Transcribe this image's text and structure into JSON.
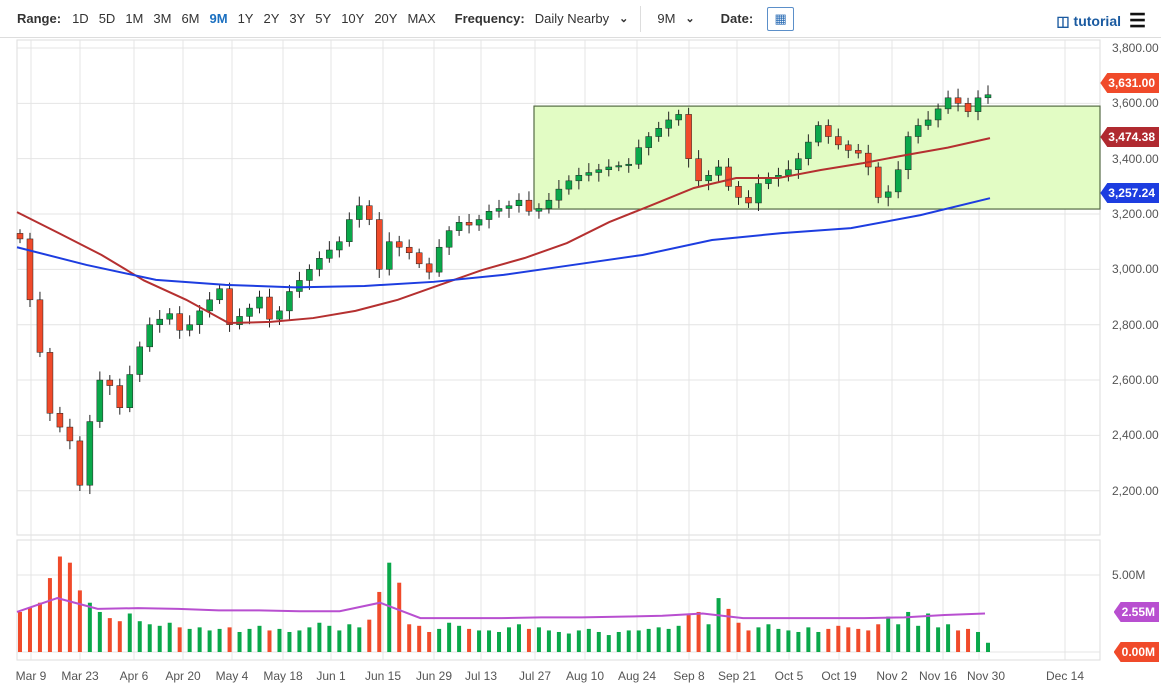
{
  "toolbar": {
    "range_label": "Range:",
    "ranges": [
      "1D",
      "5D",
      "1M",
      "3M",
      "6M",
      "9M",
      "1Y",
      "2Y",
      "3Y",
      "5Y",
      "10Y",
      "20Y",
      "MAX"
    ],
    "active_range": "9M",
    "frequency_label": "Frequency:",
    "frequency_value": "Daily Nearby",
    "period_value": "9M",
    "date_label": "Date:",
    "tutorial": "tutorial"
  },
  "colors": {
    "up": "#0aa84a",
    "down": "#f04a2a",
    "ma50": "#b53030",
    "ma200": "#1d3de0",
    "vol_ma": "#b84fd0",
    "box": "#e2fcc4"
  },
  "chart_data": {
    "type": "candlestick",
    "y_ticks": [
      "3,800.00",
      "3,600.00",
      "3,400.00",
      "3,200.00",
      "3,000.00",
      "2,800.00",
      "2,600.00",
      "2,400.00",
      "2,200.00"
    ],
    "ylim": [
      2100,
      3820
    ],
    "x_ticks": [
      "Mar 9",
      "Mar 23",
      "Apr 6",
      "Apr 20",
      "May 4",
      "May 18",
      "Jun 1",
      "Jun 15",
      "Jun 29",
      "Jul 13",
      "Jul 27",
      "Aug 10",
      "Aug 24",
      "Sep 8",
      "Sep 21",
      "Oct 5",
      "Oct 19",
      "Nov 2",
      "Nov 16",
      "Nov 30",
      "Dec 14"
    ],
    "closes": [
      3110,
      2890,
      2700,
      2480,
      2430,
      2380,
      2220,
      2450,
      2600,
      2580,
      2500,
      2620,
      2720,
      2800,
      2820,
      2840,
      2780,
      2800,
      2850,
      2890,
      2930,
      2800,
      2830,
      2860,
      2900,
      2820,
      2850,
      2920,
      2960,
      3000,
      3040,
      3070,
      3100,
      3180,
      3230,
      3180,
      3000,
      3100,
      3080,
      3060,
      3020,
      2990,
      3080,
      3140,
      3170,
      3160,
      3180,
      3210,
      3220,
      3230,
      3250,
      3210,
      3220,
      3250,
      3290,
      3320,
      3340,
      3350,
      3360,
      3370,
      3375,
      3380,
      3440,
      3480,
      3510,
      3540,
      3560,
      3400,
      3320,
      3340,
      3370,
      3300,
      3260,
      3240,
      3310,
      3330,
      3340,
      3360,
      3400,
      3460,
      3520,
      3480,
      3450,
      3430,
      3420,
      3370,
      3260,
      3280,
      3360,
      3480,
      3520,
      3540,
      3580,
      3620,
      3600,
      3570,
      3620,
      3631
    ],
    "ma50": [
      3207,
      3130,
      3052,
      2960,
      2890,
      2806,
      2810,
      2824,
      2850,
      2890,
      2944,
      2998,
      3041,
      3095,
      3171,
      3232,
      3294,
      3330,
      3330,
      3359,
      3384,
      3413,
      3440,
      3474.38
    ],
    "ma200": [
      3080,
      3016,
      2962,
      2944,
      2935,
      2940,
      2955,
      2980,
      3016,
      3052,
      3106,
      3131,
      3149,
      3196,
      3257.24
    ],
    "box": {
      "low": 3218,
      "high": 3590,
      "start": "Jul 27"
    },
    "last_price": "3,631.00",
    "ma50_label": "3,474.38",
    "ma200_label": "3,257.24",
    "volume": {
      "ticks": [
        "5.00M"
      ],
      "ylim": [
        0,
        6.5
      ],
      "ma_label": "2.55M",
      "zero_label": "0.00M",
      "values": [
        2.6,
        2.9,
        3.2,
        4.8,
        6.2,
        5.8,
        4.0,
        3.2,
        2.6,
        2.2,
        2.0,
        2.5,
        2.0,
        1.8,
        1.7,
        1.9,
        1.6,
        1.5,
        1.6,
        1.4,
        1.5,
        1.6,
        1.3,
        1.5,
        1.7,
        1.4,
        1.5,
        1.3,
        1.4,
        1.6,
        1.9,
        1.7,
        1.4,
        1.8,
        1.6,
        2.1,
        3.9,
        5.8,
        4.5,
        1.8,
        1.7,
        1.3,
        1.5,
        1.9,
        1.7,
        1.5,
        1.4,
        1.4,
        1.3,
        1.6,
        1.8,
        1.5,
        1.6,
        1.4,
        1.3,
        1.2,
        1.4,
        1.5,
        1.3,
        1.1,
        1.3,
        1.4,
        1.4,
        1.5,
        1.6,
        1.5,
        1.7,
        2.4,
        2.6,
        1.8,
        3.5,
        2.8,
        1.9,
        1.4,
        1.6,
        1.8,
        1.5,
        1.4,
        1.3,
        1.6,
        1.3,
        1.5,
        1.7,
        1.6,
        1.5,
        1.4,
        1.8,
        2.3,
        1.8,
        2.6,
        1.7,
        2.5,
        1.6,
        1.8,
        1.4,
        1.5,
        1.3,
        0.6
      ],
      "ma": [
        2.6,
        3.5,
        2.8,
        2.85,
        2.8,
        2.7,
        2.7,
        2.65,
        2.65,
        3.2,
        2.2,
        2.2,
        2.2,
        2.25,
        2.25,
        2.3,
        2.35,
        2.5,
        2.2,
        2.2,
        2.2,
        2.2,
        2.25,
        2.4,
        2.5
      ]
    }
  }
}
